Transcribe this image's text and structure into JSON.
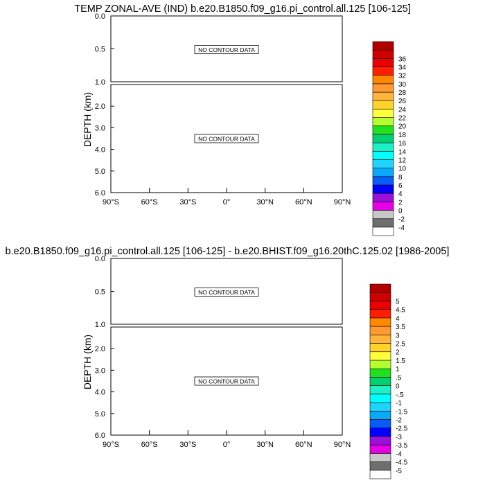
{
  "chart_data": [
    {
      "type": "contour",
      "title": "TEMP ZONAL-AVE (IND) b.e20.B1850.f09_g16.pi_control.all.125 [106-125]",
      "ylabel": "DEPTH (km)",
      "upper_y_ticks": [
        "0.0",
        "0.5",
        "1.0"
      ],
      "lower_y_ticks": [
        "2.0",
        "3.0",
        "4.0",
        "5.0",
        "6.0"
      ],
      "x_ticks": [
        "90°S",
        "60°S",
        "30°S",
        "0°",
        "30°N",
        "60°N",
        "90°N"
      ],
      "xlim": [
        -90,
        90
      ],
      "upper_ylim": [
        0,
        1
      ],
      "lower_ylim": [
        1,
        6
      ],
      "messages": [
        "NO CONTOUR DATA",
        "NO CONTOUR DATA"
      ],
      "colorbar": {
        "labels": [
          "-4",
          "-2",
          "0",
          "2",
          "4",
          "6",
          "8",
          "10",
          "12",
          "14",
          "16",
          "18",
          "20",
          "22",
          "24",
          "26",
          "28",
          "30",
          "32",
          "34",
          "36"
        ],
        "colors": [
          "#ffffff",
          "#6e6e6e",
          "#c8c8c8",
          "#e600e6",
          "#9a10d8",
          "#0000ff",
          "#0a5cfa",
          "#0aa8fa",
          "#1fd4fa",
          "#00ffff",
          "#1ef0c8",
          "#00d070",
          "#20e020",
          "#b4ff30",
          "#ffff3c",
          "#ffd22a",
          "#ffb43c",
          "#ff9a32",
          "#ff8800",
          "#ff1e00",
          "#ee0000",
          "#d00000",
          "#b00000"
        ]
      }
    },
    {
      "type": "contour",
      "title": "b.e20.B1850.f09_g16.pi_control.all.125 [106-125] - b.e20.BHIST.f09_g16.20thC.125.02 [1986-2005]",
      "ylabel": "DEPTH (km)",
      "upper_y_ticks": [
        "0.0",
        "0.5",
        "1.0"
      ],
      "lower_y_ticks": [
        "2.0",
        "3.0",
        "4.0",
        "5.0",
        "6.0"
      ],
      "x_ticks": [
        "90°S",
        "60°S",
        "30°S",
        "0°",
        "30°N",
        "60°N",
        "90°N"
      ],
      "xlim": [
        -90,
        90
      ],
      "upper_ylim": [
        0,
        1
      ],
      "lower_ylim": [
        1,
        6
      ],
      "messages": [
        "NO CONTOUR DATA",
        "NO CONTOUR DATA"
      ],
      "colorbar": {
        "labels": [
          "-5",
          "-4.5",
          "-4",
          "-3.5",
          "-3",
          "-2.5",
          "-2",
          "-1.5",
          "-1",
          "-.5",
          "0",
          ".5",
          "1",
          "1.5",
          "2",
          "2.5",
          "3",
          "3.5",
          "4",
          "4.5",
          "5"
        ],
        "colors": [
          "#ffffff",
          "#6e6e6e",
          "#c8c8c8",
          "#e600e6",
          "#9a10d8",
          "#0000ff",
          "#0a5cfa",
          "#0aa8fa",
          "#1fd4fa",
          "#00ffff",
          "#1ef0c8",
          "#00d070",
          "#20e020",
          "#b4ff30",
          "#ffff3c",
          "#ffd22a",
          "#ffb43c",
          "#ff9a32",
          "#ff8800",
          "#ff1e00",
          "#ee0000",
          "#d00000",
          "#b00000"
        ]
      }
    }
  ]
}
